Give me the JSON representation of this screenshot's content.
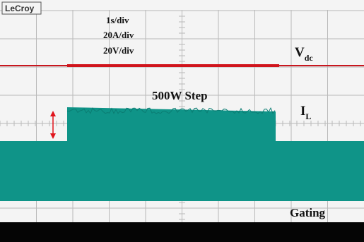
{
  "header": {
    "brand": "LeCroy"
  },
  "settings": [
    "1s/div",
    "20A/div",
    "20V/div"
  ],
  "labels": {
    "vdc": {
      "main": "V",
      "sub": "dc"
    },
    "il": {
      "main": "I",
      "sub": "L"
    },
    "step": "500W Step",
    "gating": "Gating"
  }
}
